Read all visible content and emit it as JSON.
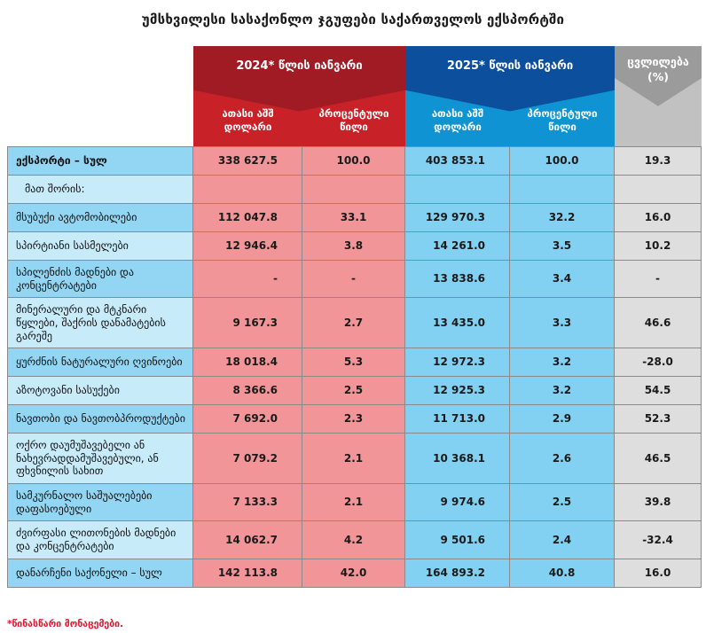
{
  "title": "უმსხვილესი სასაქონლო ჯგუფები საქართველოს ექსპორტში",
  "footnote": "*წინასწარი მონაცემები.",
  "colors": {
    "red_dark": "#A01B24",
    "red": "#C92128",
    "pink": "#F29598",
    "blue_dark": "#0B4F9D",
    "blue": "#0F93D3",
    "cell_blue": "#82D1F2",
    "label_medium": "#92D6F3",
    "label_light": "#C8EBFA",
    "gray_dark": "#9B9B9B",
    "gray": "#C1C1C1",
    "cell_gray": "#DEDEDE",
    "footnote_red": "#E01931"
  },
  "chart_data": {
    "type": "table",
    "title": "უმსხვილესი სასაქონლო ჯგუფები საქართველოს ექსპორტში",
    "column_groups": [
      {
        "label": "2024* წლის იანვარი",
        "columns": [
          "ათასი აშშ დოლარი",
          "პროცენტული წილი"
        ]
      },
      {
        "label": "2025* წლის იანვარი",
        "columns": [
          "ათასი აშშ დოლარი",
          "პროცენტული წილი"
        ]
      },
      {
        "label": "ცვლილება (%)",
        "columns": []
      }
    ],
    "rows": [
      {
        "label": "ექსპორტი – სულ",
        "a2024": "338 627.5",
        "p2024": "100.0",
        "a2025": "403 853.1",
        "p2025": "100.0",
        "change": "19.3",
        "bold": true,
        "indent": false,
        "shade": "medium"
      },
      {
        "label": "მათ შორის:",
        "a2024": "",
        "p2024": "",
        "a2025": "",
        "p2025": "",
        "change": "",
        "bold": false,
        "indent": true,
        "shade": "light"
      },
      {
        "label": "მსუბუქი ავტომობილები",
        "a2024": "112 047.8",
        "p2024": "33.1",
        "a2025": "129 970.3",
        "p2025": "32.2",
        "change": "16.0",
        "bold": false,
        "indent": false,
        "shade": "medium"
      },
      {
        "label": "სპირტიანი სასმელები",
        "a2024": "12 946.4",
        "p2024": "3.8",
        "a2025": "14 261.0",
        "p2025": "3.5",
        "change": "10.2",
        "bold": false,
        "indent": false,
        "shade": "light"
      },
      {
        "label": "სპილენძის მადნები და კონცენტრატები",
        "a2024": "-",
        "p2024": "-",
        "a2025": "13 838.6",
        "p2025": "3.4",
        "change": "-",
        "bold": false,
        "indent": false,
        "shade": "medium"
      },
      {
        "label": "მინერალური და მტკნარი წყლები, შაქრის დანამატების გარეშე",
        "a2024": "9 167.3",
        "p2024": "2.7",
        "a2025": "13 435.0",
        "p2025": "3.3",
        "change": "46.6",
        "bold": false,
        "indent": false,
        "shade": "light"
      },
      {
        "label": "ყურძნის ნატურალური ღვინოები",
        "a2024": "18 018.4",
        "p2024": "5.3",
        "a2025": "12 972.3",
        "p2025": "3.2",
        "change": "-28.0",
        "bold": false,
        "indent": false,
        "shade": "medium"
      },
      {
        "label": "აზოტოვანი სასუქები",
        "a2024": "8 366.6",
        "p2024": "2.5",
        "a2025": "12 925.3",
        "p2025": "3.2",
        "change": "54.5",
        "bold": false,
        "indent": false,
        "shade": "light"
      },
      {
        "label": "ნავთობი და ნავთობპროდუქტები",
        "a2024": "7 692.0",
        "p2024": "2.3",
        "a2025": "11 713.0",
        "p2025": "2.9",
        "change": "52.3",
        "bold": false,
        "indent": false,
        "shade": "medium"
      },
      {
        "label": "ოქრო დაუმუშავებელი ან ნახევრადდამუშავებული, ან ფხვნილის სახით",
        "a2024": "7 079.2",
        "p2024": "2.1",
        "a2025": "10 368.1",
        "p2025": "2.6",
        "change": "46.5",
        "bold": false,
        "indent": false,
        "shade": "light"
      },
      {
        "label": "სამკურნალო საშუალებები დაფასოებული",
        "a2024": "7 133.3",
        "p2024": "2.1",
        "a2025": "9 974.6",
        "p2025": "2.5",
        "change": "39.8",
        "bold": false,
        "indent": false,
        "shade": "medium"
      },
      {
        "label": "ძვირფასი ლითონების მადნები და კონცენტრატები",
        "a2024": "14 062.7",
        "p2024": "4.2",
        "a2025": "9 501.6",
        "p2025": "2.4",
        "change": "-32.4",
        "bold": false,
        "indent": false,
        "shade": "light"
      },
      {
        "label": "დანარჩენი საქონელი – სულ",
        "a2024": "142 113.8",
        "p2024": "42.0",
        "a2025": "164 893.2",
        "p2025": "40.8",
        "change": "16.0",
        "bold": false,
        "indent": false,
        "shade": "medium"
      }
    ]
  }
}
